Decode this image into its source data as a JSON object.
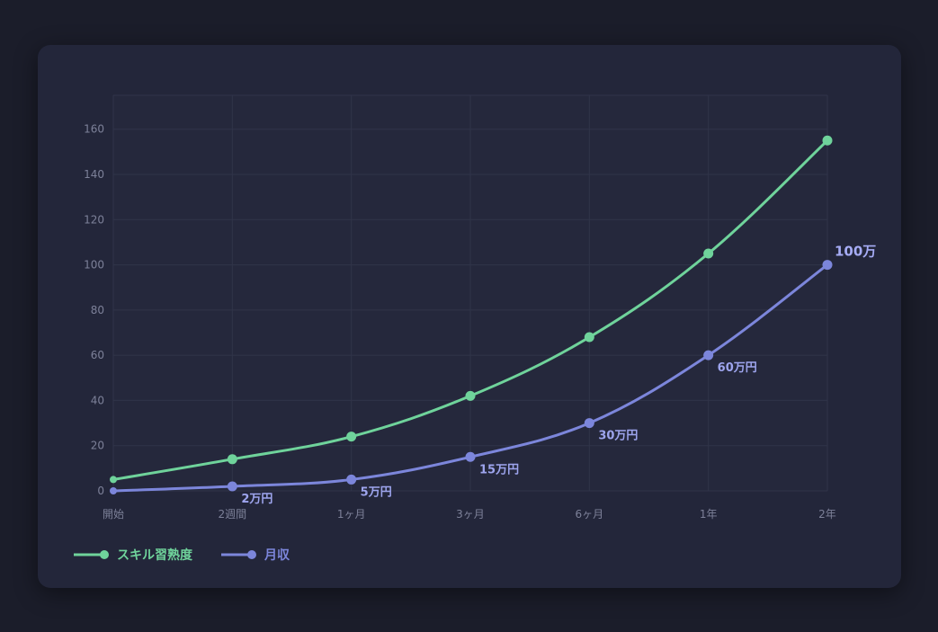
{
  "colors": {
    "background": "#1b1d2a",
    "card": "#23263a",
    "grid": "#303449",
    "tick": "#7d8199",
    "skill": "#6fd39b",
    "income": "#7c86db",
    "income_label": "#9ea5ee"
  },
  "legend": [
    {
      "name": "スキル習熟度",
      "color": "#6fd39b"
    },
    {
      "name": "月収",
      "color": "#7c86db"
    }
  ],
  "chart_data": {
    "type": "line",
    "title": "",
    "xlabel": "",
    "ylabel": "",
    "categories": [
      "開始",
      "2週間",
      "1ヶ月",
      "3ヶ月",
      "6ヶ月",
      "1年",
      "2年"
    ],
    "ylim": [
      0,
      175
    ],
    "yticks": [
      0,
      20,
      40,
      60,
      80,
      100,
      120,
      140,
      160
    ],
    "grid": true,
    "legend_position": "bottom-left",
    "series": [
      {
        "name": "スキル習熟度",
        "color": "#6fd39b",
        "values": [
          5,
          14,
          24,
          42,
          68,
          105,
          155
        ]
      },
      {
        "name": "月収",
        "color": "#7c86db",
        "values": [
          0,
          2,
          5,
          15,
          30,
          60,
          100
        ],
        "data_labels": [
          "",
          "2万円",
          "5万円",
          "15万円",
          "30万円",
          "60万円",
          "100万"
        ]
      }
    ]
  }
}
